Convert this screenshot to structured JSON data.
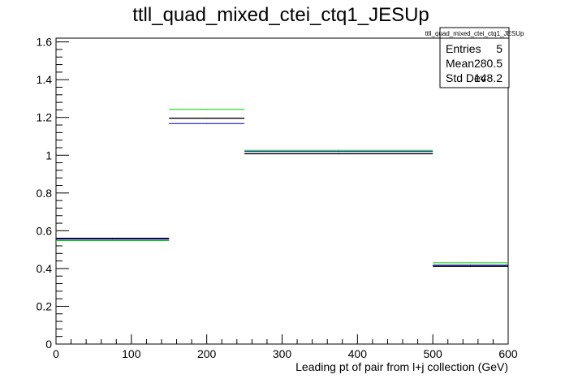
{
  "chart_data": {
    "type": "line",
    "title": "ttll_quad_mixed_ctei_ctq1_JESUp",
    "xlabel": "Leading pt of pair from l+j collection (GeV)",
    "ylabel": "",
    "xlim": [
      0,
      600
    ],
    "ylim": [
      0,
      1.62
    ],
    "x_ticks": [
      0,
      100,
      200,
      300,
      400,
      500,
      600
    ],
    "x_tick_labels": [
      "0",
      "100",
      "200",
      "300",
      "400",
      "500",
      "600"
    ],
    "y_ticks": [
      0,
      0.2,
      0.4,
      0.6,
      0.8,
      1,
      1.2,
      1.4,
      1.6
    ],
    "y_tick_labels": [
      "0",
      "0.2",
      "0.4",
      "0.6",
      "0.8",
      "1",
      "1.2",
      "1.4",
      "1.6"
    ],
    "bin_edges": [
      0,
      150,
      250,
      500,
      600
    ],
    "series": [
      {
        "color": "#00cc00",
        "values": [
          0.548,
          1.243,
          1.026,
          0.43
        ]
      },
      {
        "color": "#0000cc",
        "values": [
          0.555,
          1.168,
          1.02,
          0.418
        ]
      },
      {
        "color": "#000000",
        "values": [
          0.56,
          1.196,
          1.008,
          0.412
        ]
      }
    ],
    "stats_box": {
      "title": "ttll_quad_mixed_ctei_ctq1_JESUp",
      "rows": [
        {
          "label": "Entries",
          "value": "5"
        },
        {
          "label": "Mean",
          "value": "280.5"
        },
        {
          "label": "Std Dev",
          "value": "148.2"
        }
      ]
    },
    "grid": false,
    "legend": "none"
  }
}
